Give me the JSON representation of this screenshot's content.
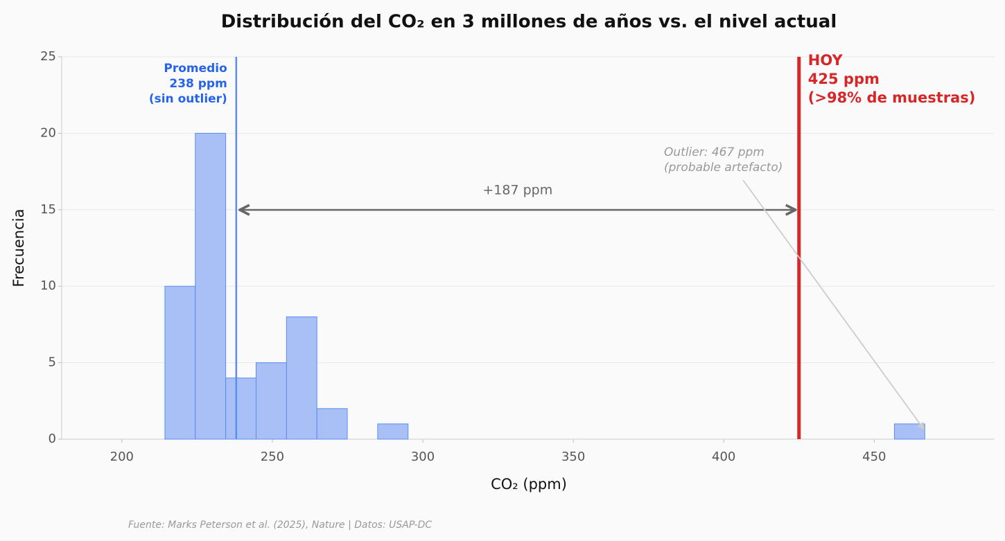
{
  "chart_data": {
    "type": "histogram",
    "title": "Distribución del CO₂ en 3 millones de años vs. el nivel actual",
    "x_label": "CO₂ (ppm)",
    "y_label": "Frecuencia",
    "source": "Fuente: Marks Peterson et al. (2025), Nature | Datos: USAP-DC",
    "bins": [
      214.3,
      224.4,
      234.5,
      244.6,
      254.7,
      264.8,
      274.9,
      285.0,
      295.1,
      305.2,
      315.3,
      325.4,
      335.5,
      345.6,
      355.7,
      365.8,
      375.9,
      386.0,
      396.1,
      406.2,
      416.3,
      426.4,
      436.5,
      446.6,
      456.7,
      466.8
    ],
    "counts": [
      10,
      20,
      4,
      5,
      8,
      2,
      0,
      1,
      0,
      0,
      0,
      0,
      0,
      0,
      0,
      0,
      0,
      0,
      0,
      0,
      0,
      0,
      0,
      0,
      1
    ],
    "color": "#a4bdf5",
    "edge_color": "#5b8def",
    "xlim": [
      180,
      490
    ],
    "ylim": [
      0,
      25
    ],
    "xticks": [
      200,
      250,
      300,
      350,
      400,
      450
    ],
    "yticks": [
      0,
      5,
      10,
      15,
      20,
      25
    ],
    "grid": true,
    "reference_lines": [
      {
        "value": 238,
        "color": "#5b8def",
        "text_color": "#2563eb",
        "label": [
          "Promedio",
          "238 ppm",
          "(sin outlier)"
        ]
      },
      {
        "value": 425,
        "color": "#d62728",
        "text_color": "#d62728",
        "label": [
          "HOY",
          "425 ppm",
          "(>98% de muestras)"
        ]
      }
    ],
    "span": {
      "from": 238,
      "to": 425,
      "label": "+187 ppm"
    },
    "outlier": {
      "x": 467,
      "label": [
        "Outlier: 467 ppm",
        "(probable artefacto)"
      ]
    }
  }
}
